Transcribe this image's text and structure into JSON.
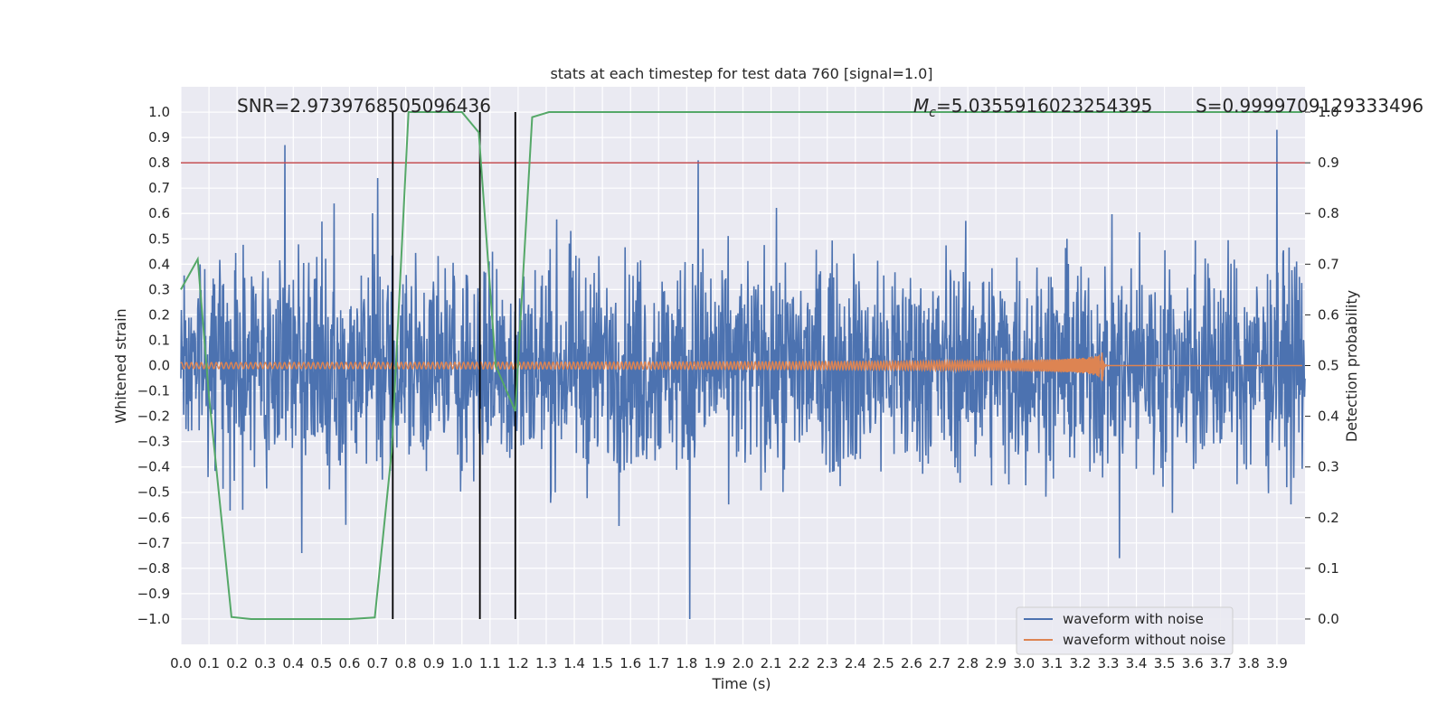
{
  "chart_data": {
    "type": "line",
    "title": "stats at each timestep for test data 760 [signal=1.0]",
    "xlabel": "Time (s)",
    "ylabel": "Whitened strain",
    "ylabel_right": "Detection probability",
    "xlim": [
      0.0,
      4.0
    ],
    "ylim": [
      -1.1,
      1.1
    ],
    "ylim_right": [
      -0.05,
      1.05
    ],
    "x_ticks": [
      "0.0",
      "0.1",
      "0.2",
      "0.3",
      "0.4",
      "0.5",
      "0.6",
      "0.7",
      "0.8",
      "0.9",
      "1.0",
      "1.1",
      "1.2",
      "1.3",
      "1.4",
      "1.5",
      "1.6",
      "1.7",
      "1.8",
      "1.9",
      "2.0",
      "2.1",
      "2.2",
      "2.3",
      "2.4",
      "2.5",
      "2.6",
      "2.7",
      "2.8",
      "2.9",
      "3.0",
      "3.1",
      "3.2",
      "3.3",
      "3.4",
      "3.5",
      "3.6",
      "3.7",
      "3.8",
      "3.9"
    ],
    "y_ticks": [
      "1.0",
      "0.9",
      "0.8",
      "0.7",
      "0.6",
      "0.5",
      "0.4",
      "0.3",
      "0.2",
      "0.1",
      "0.0",
      "−0.1",
      "−0.2",
      "−0.3",
      "−0.4",
      "−0.5",
      "−0.6",
      "−0.7",
      "−0.8",
      "−0.9",
      "−1.0"
    ],
    "y_ticks_right": [
      "1.0",
      "0.9",
      "0.8",
      "0.7",
      "0.6",
      "0.5",
      "0.4",
      "0.3",
      "0.2",
      "0.1",
      "0.0"
    ],
    "grid": true,
    "legend_position": "bottom-right",
    "annotations": {
      "snr": "SNR=2.9739768505096436",
      "mc_symbol": "M",
      "mc_sub": "c",
      "mc_value": "=5.0355916023254395",
      "s": "S=0.9999709129333496"
    },
    "threshold_right": 0.9,
    "vlines_x": [
      0.754,
      1.064,
      1.19
    ],
    "waveform_noise_amplitude_peaks": [
      {
        "x": 0.37,
        "y": 0.87
      },
      {
        "x": 0.7,
        "y": 0.74
      },
      {
        "x": 1.84,
        "y": 0.81
      },
      {
        "x": 3.9,
        "y": 0.93
      },
      {
        "x": 0.43,
        "y": -0.74
      },
      {
        "x": 1.81,
        "y": -1.0
      },
      {
        "x": 3.34,
        "y": -0.76
      }
    ],
    "series": [
      {
        "name": "waveform with noise",
        "color": "#4c72b0",
        "axis": "left",
        "x_range": [
          0.0,
          4.0
        ],
        "typical_amplitude": 0.3
      },
      {
        "name": "waveform without noise",
        "color": "#dd8452",
        "axis": "left",
        "chirp_start_amplitude": 0.012,
        "merger_time": 3.28,
        "merger_amplitude": 0.07
      },
      {
        "name": "",
        "color": "#55a868",
        "axis": "right",
        "x": [
          0.0,
          0.06,
          0.1,
          0.18,
          0.25,
          0.3,
          0.4,
          0.5,
          0.6,
          0.69,
          0.75,
          0.81,
          0.88,
          1.0,
          1.06,
          1.12,
          1.19,
          1.25,
          1.31,
          1.4,
          1.6,
          2.0,
          2.5,
          3.0,
          3.5,
          3.99
        ],
        "y": [
          0.65,
          0.71,
          0.44,
          0.004,
          0.0,
          0.0,
          0.0,
          0.0,
          0.0,
          0.003,
          0.33,
          1.0,
          1.0,
          1.0,
          0.96,
          0.5,
          0.41,
          0.99,
          1.0,
          1.0,
          1.0,
          1.0,
          1.0,
          1.0,
          1.0,
          1.0
        ]
      }
    ],
    "colors": {
      "plot_background": "#eaeaf2",
      "grid": "#ffffff",
      "threshold_line": "#c44e52",
      "vline": "#000000"
    }
  }
}
